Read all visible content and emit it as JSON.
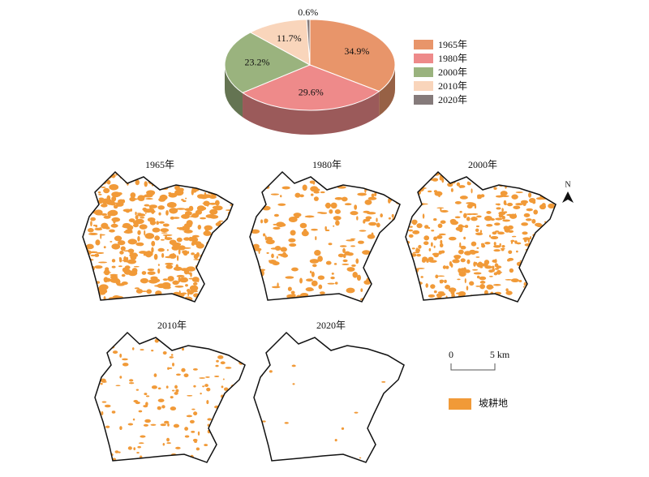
{
  "chart_data": {
    "type": "pie",
    "categories": [
      "1965年",
      "1980年",
      "2000年",
      "2010年",
      "2020年"
    ],
    "values": [
      34.9,
      29.6,
      23.2,
      11.7,
      0.6
    ],
    "value_labels": [
      "34.9%",
      "29.6%",
      "23.2%",
      "11.7%",
      "0.6%"
    ],
    "colors": [
      "#e8956a",
      "#ee8a8a",
      "#9ab37e",
      "#f9d5bb",
      "#857a7a"
    ],
    "legend": "right"
  },
  "maps": {
    "titles": [
      "1965年",
      "1980年",
      "2000年",
      "2010年",
      "2020年"
    ],
    "color": "#f19a38"
  },
  "scale_bar": {
    "start": "0",
    "end": "5 km"
  },
  "map_legend": "坡耕地",
  "north_arrow": "N"
}
